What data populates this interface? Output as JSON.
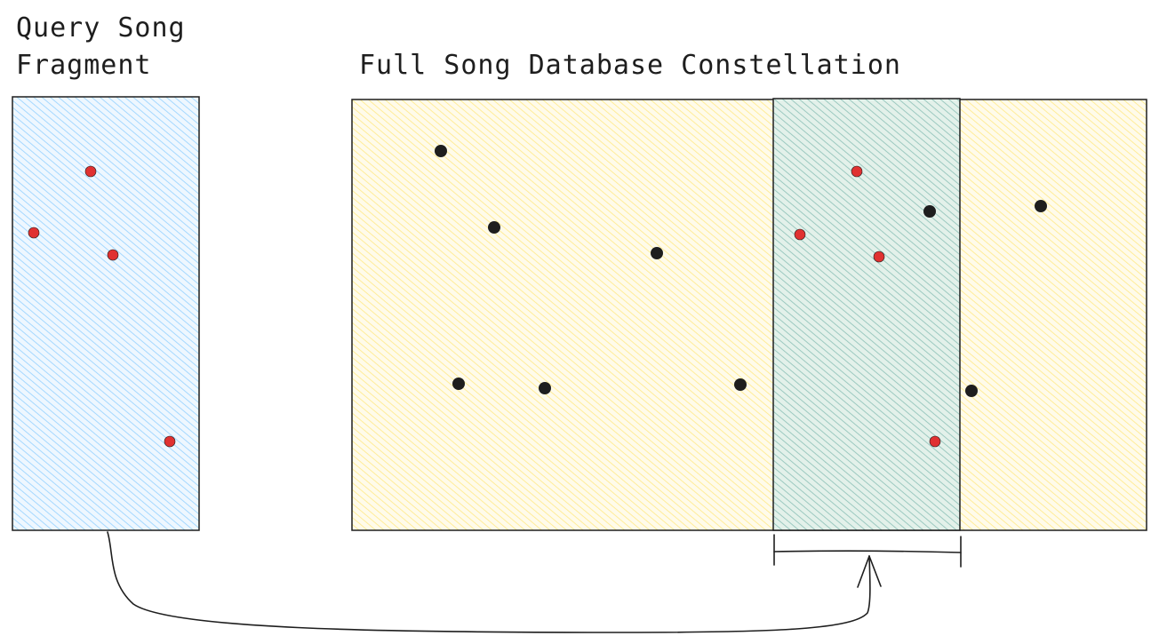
{
  "labels": {
    "query_line1": "Query Song",
    "query_line2": "Fragment",
    "database": "Full Song Database Constellation"
  },
  "colors": {
    "query_fill": "#a5d8ff",
    "database_fill": "#ffec99",
    "match_dot": "#e03131",
    "db_dot": "#1e1e1e",
    "stroke": "#1e1e1e"
  },
  "query_points": 4,
  "database_points": {
    "black": 9,
    "red_in_match_window": 4
  }
}
